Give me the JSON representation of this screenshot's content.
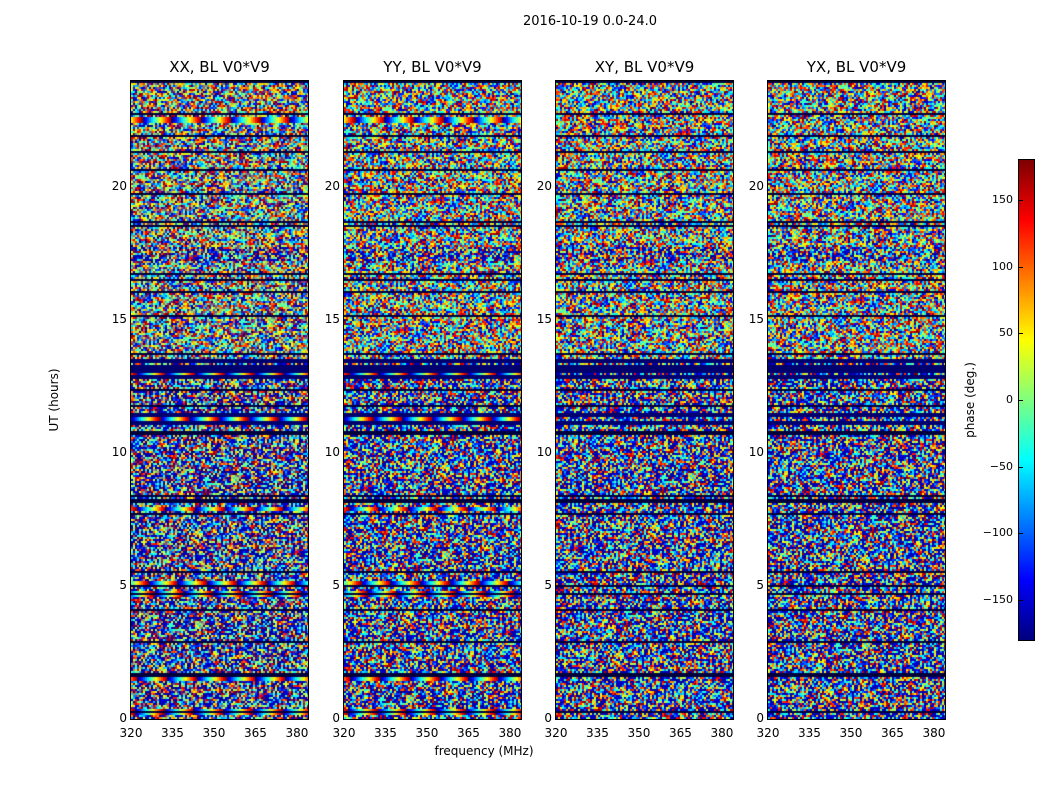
{
  "title": "2016-10-19 0.0-24.0",
  "chart_data": {
    "type": "heatmap",
    "colormap": "jet",
    "xlabel": "frequency (MHz)",
    "ylabel": "UT (hours)",
    "xlim": [
      320,
      384
    ],
    "ylim": [
      0,
      24
    ],
    "xticks": [
      320,
      335,
      350,
      365,
      380
    ],
    "yticks": [
      0,
      5,
      10,
      15,
      20
    ],
    "panels": [
      {
        "title": "XX, BL V0*V9",
        "fringe_hours": [
          0.3,
          1.6,
          4.75,
          5.15,
          7.95,
          11.35,
          12.95,
          22.55
        ]
      },
      {
        "title": "YY, BL V0*V9",
        "fringe_hours": [
          0.3,
          1.6,
          4.75,
          5.15,
          7.95,
          11.35,
          12.95,
          22.55
        ]
      },
      {
        "title": "XY, BL V0*V9",
        "fringe_hours": []
      },
      {
        "title": "YX, BL V0*V9",
        "fringe_hours": []
      }
    ],
    "flagged_hours": [
      11.2,
      11.5,
      12.9,
      13.1,
      13.3,
      13.5
    ],
    "colorbar": {
      "label": "phase (deg.)",
      "clim": [
        -180,
        180
      ],
      "ticks": [
        150,
        100,
        50,
        0,
        -50,
        -100,
        -150
      ]
    }
  }
}
